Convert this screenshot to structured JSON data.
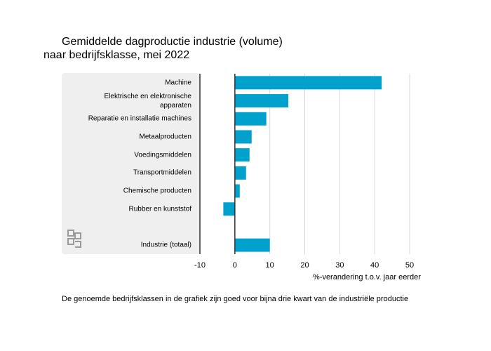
{
  "chart_data": {
    "type": "bar",
    "orientation": "horizontal",
    "title": "Gemiddelde dagproductie industrie (volume) naar bedrijfsklasse, mei 2022",
    "categories": [
      "Machine",
      "Elektrische en elektronische apparaten",
      "Reparatie en installatie machines",
      "Metaalproducten",
      "Voedingsmiddelen",
      "Transportmiddelen",
      "Chemische producten",
      "Rubber en kunststof",
      null,
      "Industrie (totaal)"
    ],
    "values": [
      42,
      15.3,
      9,
      4.8,
      4.2,
      3.2,
      1.4,
      -3.3,
      null,
      10
    ],
    "color": "#00a1cd",
    "xlim": [
      -10,
      50
    ],
    "xticks": [
      -10,
      0,
      10,
      20,
      30,
      40,
      50
    ],
    "xlabel": "%-verandering t.o.v. jaar eerder",
    "grid": true,
    "footnote": "De genoemde bedrijfsklassen in de grafiek zijn goed voor bijna drie kwart van de industriële productie"
  }
}
